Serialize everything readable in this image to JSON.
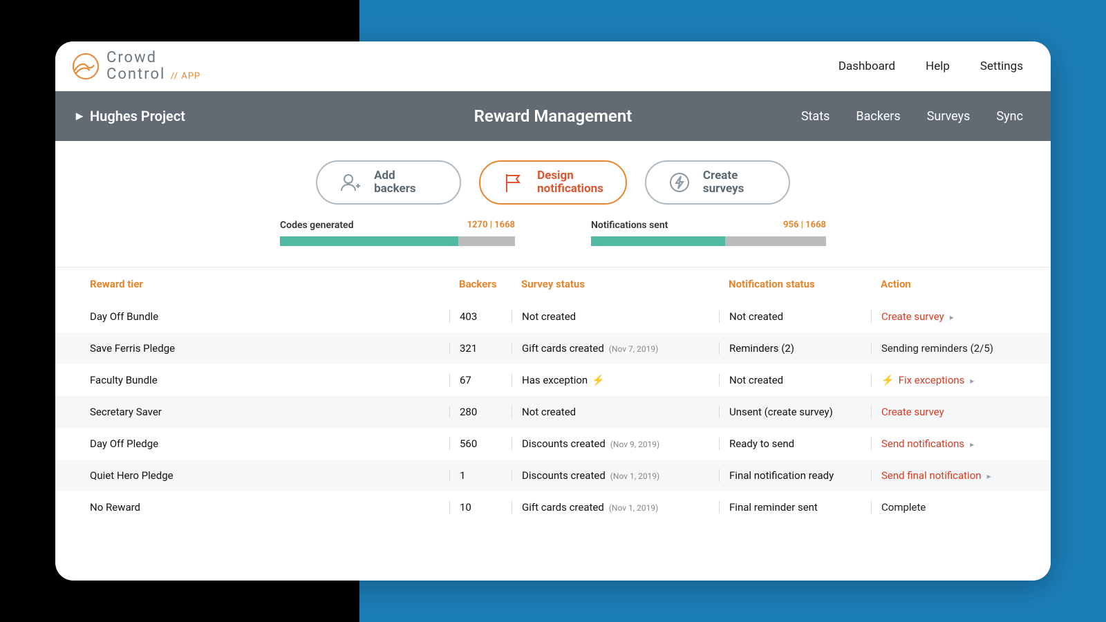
{
  "brand": {
    "line1": "Crowd",
    "line2": "Control",
    "appLabel": "// APP",
    "accent": "#e5852e",
    "grey": "#6a7780"
  },
  "topnav": {
    "items": [
      "Dashboard",
      "Help",
      "Settings"
    ]
  },
  "projectbar": {
    "project": "Hughes Project",
    "title": "Reward Management",
    "items": [
      "Stats",
      "Backers",
      "Surveys",
      "Sync"
    ],
    "bg": "#626b73"
  },
  "actions": [
    {
      "line1": "Add",
      "line2": "backers",
      "active": false,
      "icon": "user-plus-icon"
    },
    {
      "line1": "Design",
      "line2": "notifications",
      "active": true,
      "icon": "flag-icon"
    },
    {
      "line1": "Create",
      "line2": "surveys",
      "active": false,
      "icon": "lightning-icon"
    }
  ],
  "stats": [
    {
      "label": "Codes generated",
      "current": 1270,
      "total": 1668,
      "display": "1270 | 1668",
      "pct": 76
    },
    {
      "label": "Notifications sent",
      "current": 956,
      "total": 1668,
      "display": "956 | 1668",
      "pct": 57
    }
  ],
  "table": {
    "columns": [
      "Reward tier",
      "Backers",
      "Survey status",
      "Notification status",
      "Action"
    ],
    "headerColor": "#e5852e",
    "rows": [
      {
        "tier": "Day Off Bundle",
        "backers": "403",
        "survey": "Not created",
        "surveySub": "",
        "surveyBolt": false,
        "notif": "Not created",
        "action": "Create survey",
        "actionLink": true,
        "chev": true,
        "preBolt": false
      },
      {
        "tier": "Save Ferris Pledge",
        "backers": "321",
        "survey": "Gift cards created",
        "surveySub": "(Nov 7, 2019)",
        "surveyBolt": false,
        "notif": "Reminders (2)",
        "action": "Sending reminders (2/5)",
        "actionLink": false,
        "chev": false,
        "preBolt": false
      },
      {
        "tier": "Faculty Bundle",
        "backers": "67",
        "survey": "Has exception",
        "surveySub": "",
        "surveyBolt": true,
        "notif": "Not created",
        "action": "Fix exceptions",
        "actionLink": true,
        "chev": true,
        "preBolt": true
      },
      {
        "tier": "Secretary Saver",
        "backers": "280",
        "survey": "Not created",
        "surveySub": "",
        "surveyBolt": false,
        "notif": "Unsent (create survey)",
        "action": "Create survey",
        "actionLink": true,
        "chev": false,
        "preBolt": false
      },
      {
        "tier": "Day Off Pledge",
        "backers": "560",
        "survey": "Discounts created",
        "surveySub": "(Nov 9, 2019)",
        "surveyBolt": false,
        "notif": "Ready to send",
        "action": "Send notifications",
        "actionLink": true,
        "chev": true,
        "preBolt": false
      },
      {
        "tier": "Quiet Hero Pledge",
        "backers": "1",
        "survey": "Discounts created",
        "surveySub": "(Nov 1, 2019)",
        "surveyBolt": false,
        "notif": "Final notification ready",
        "action": "Send final notification",
        "actionLink": true,
        "chev": true,
        "preBolt": false
      },
      {
        "tier": "No Reward",
        "backers": "10",
        "survey": "Gift cards created",
        "surveySub": "(Nov 1, 2019)",
        "surveyBolt": false,
        "notif": "Final reminder sent",
        "action": "Complete",
        "actionLink": false,
        "chev": false,
        "preBolt": false
      }
    ]
  },
  "colors": {
    "bgBlue": "#1c7eb8",
    "barFill": "#4fb9a1",
    "barBg": "#bcbcbc",
    "actionRed": "#d53d24"
  }
}
